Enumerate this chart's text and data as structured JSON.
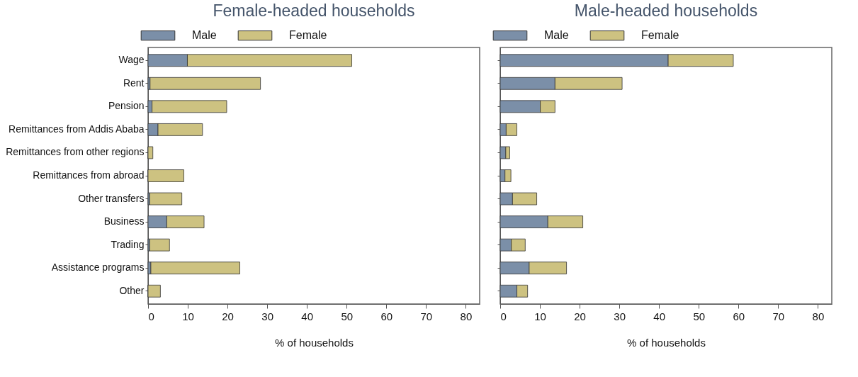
{
  "chart_data": [
    {
      "type": "bar",
      "title": "Female-headed households",
      "xlabel": "% of households",
      "orientation": "horizontal",
      "stacked": true,
      "legend": "top",
      "grid": false,
      "categories": [
        "Wage",
        "Rent",
        "Pension",
        "Remittances from Addis Ababa",
        "Remittances from other regions",
        "Remittances from abroad",
        "Other transfers",
        "Business",
        "Trading",
        "Assistance programs",
        "Other"
      ],
      "series": [
        {
          "name": "Male",
          "color": "#7b8fa8",
          "values": [
            9.9,
            0.5,
            1.0,
            2.5,
            0,
            0,
            0.4,
            4.7,
            0.4,
            0.7,
            0
          ]
        },
        {
          "name": "Female",
          "color": "#cdc281",
          "values": [
            41.4,
            27.8,
            18.8,
            11.2,
            1.2,
            9.0,
            8.1,
            9.4,
            5.0,
            22.4,
            3.1
          ]
        }
      ],
      "xlim": [
        0,
        83.5
      ],
      "xticks": [
        0,
        10,
        20,
        30,
        40,
        50,
        60,
        70,
        80
      ]
    },
    {
      "type": "bar",
      "title": "Male-headed households",
      "xlabel": "% of households",
      "orientation": "horizontal",
      "stacked": true,
      "legend": "top",
      "grid": false,
      "tick_labels": "x",
      "categories": [
        "Wage",
        "Rent",
        "Pension",
        "Remittances from Addis Ababa",
        "Remittances from other regions",
        "Remittances from abroad",
        "Other transfers",
        "Business",
        "Trading",
        "Assistance programs",
        "Other"
      ],
      "series": [
        {
          "name": "Male",
          "color": "#7b8fa8",
          "values": [
            42.3,
            13.8,
            10.1,
            1.5,
            1.4,
            1.2,
            3.1,
            12.0,
            2.8,
            7.3,
            4.2
          ]
        },
        {
          "name": "Female",
          "color": "#cdc281",
          "values": [
            16.4,
            16.9,
            3.7,
            2.7,
            1.0,
            1.5,
            6.1,
            8.8,
            3.5,
            9.4,
            2.7
          ]
        }
      ],
      "xlim": [
        0,
        83.5
      ],
      "xticks": [
        0,
        10,
        20,
        30,
        40,
        50,
        60,
        70,
        80
      ]
    }
  ]
}
